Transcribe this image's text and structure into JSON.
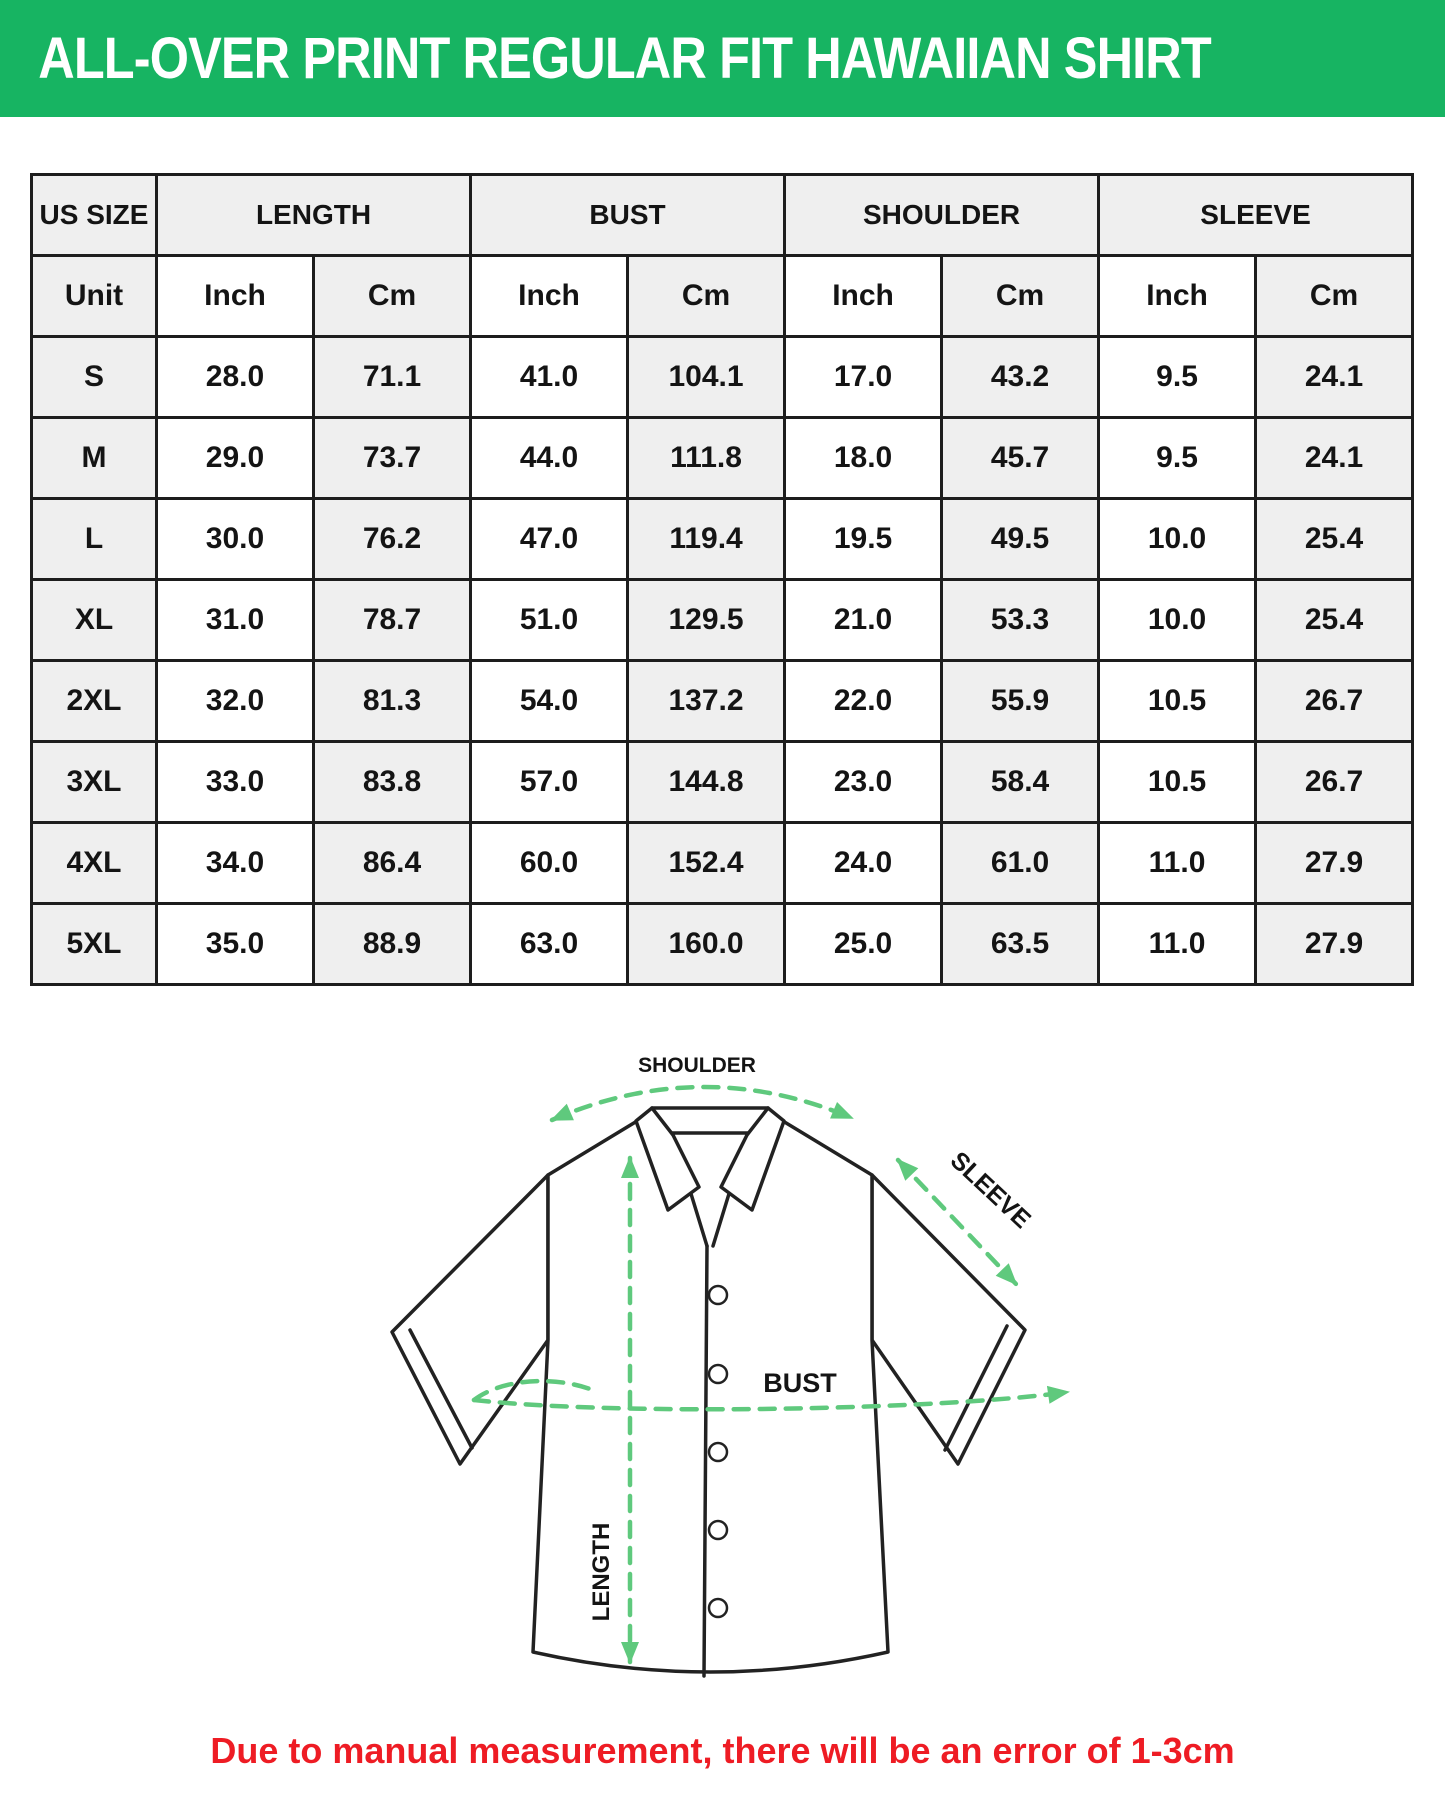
{
  "banner": {
    "title": "ALL-OVER PRINT REGULAR FIT HAWAIIAN SHIRT",
    "bg_color": "#17b462",
    "text_color": "#ffffff"
  },
  "size_chart": {
    "groups": [
      {
        "label": "US SIZE",
        "span": 1
      },
      {
        "label": "LENGTH",
        "span": 2
      },
      {
        "label": "BUST",
        "span": 2
      },
      {
        "label": "SHOULDER",
        "span": 2
      },
      {
        "label": "SLEEVE",
        "span": 2
      }
    ],
    "unit_row": [
      "Unit",
      "Inch",
      "Cm",
      "Inch",
      "Cm",
      "Inch",
      "Cm",
      "Inch",
      "Cm"
    ],
    "rows": [
      {
        "size": "S",
        "values": [
          "28.0",
          "71.1",
          "41.0",
          "104.1",
          "17.0",
          "43.2",
          "9.5",
          "24.1"
        ]
      },
      {
        "size": "M",
        "values": [
          "29.0",
          "73.7",
          "44.0",
          "111.8",
          "18.0",
          "45.7",
          "9.5",
          "24.1"
        ]
      },
      {
        "size": "L",
        "values": [
          "30.0",
          "76.2",
          "47.0",
          "119.4",
          "19.5",
          "49.5",
          "10.0",
          "25.4"
        ]
      },
      {
        "size": "XL",
        "values": [
          "31.0",
          "78.7",
          "51.0",
          "129.5",
          "21.0",
          "53.3",
          "10.0",
          "25.4"
        ]
      },
      {
        "size": "2XL",
        "values": [
          "32.0",
          "81.3",
          "54.0",
          "137.2",
          "22.0",
          "55.9",
          "10.5",
          "26.7"
        ]
      },
      {
        "size": "3XL",
        "values": [
          "33.0",
          "83.8",
          "57.0",
          "144.8",
          "23.0",
          "58.4",
          "10.5",
          "26.7"
        ]
      },
      {
        "size": "4XL",
        "values": [
          "34.0",
          "86.4",
          "60.0",
          "152.4",
          "24.0",
          "61.0",
          "11.0",
          "27.9"
        ]
      },
      {
        "size": "5XL",
        "values": [
          "35.0",
          "88.9",
          "63.0",
          "160.0",
          "25.0",
          "63.5",
          "11.0",
          "27.9"
        ]
      }
    ],
    "stripe_color": "#efefef",
    "border_color": "#1d1d1d"
  },
  "diagram": {
    "labels": {
      "shoulder": "SHOULDER",
      "sleeve": "SLEEVE",
      "bust": "BUST",
      "length": "LENGTH"
    },
    "arrow_color": "#5fc97d",
    "outline_color": "#222222",
    "button_count": 5
  },
  "footer": {
    "note": "Due to manual measurement, there will be an error of 1-3cm",
    "color": "#ee1c24"
  }
}
